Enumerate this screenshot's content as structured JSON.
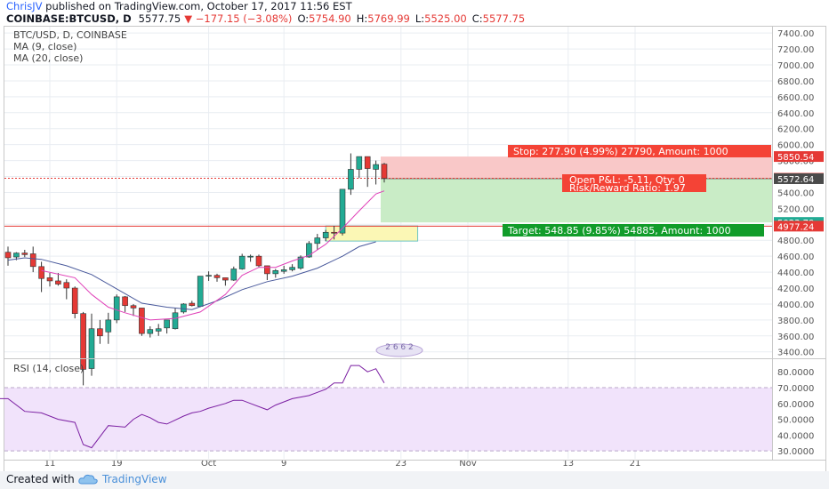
{
  "header": {
    "author": "ChrisJV",
    "published_text": " published on TradingView.com, October 17, 2017 11:56 EST",
    "symbol_line": "COINBASE:BTCUSD, D",
    "last": "5577.75",
    "change": "▼ −177.15 (−3.08%)",
    "open_label": "O:",
    "open": "5754.90",
    "high_label": "H:",
    "high": "5769.99",
    "low_label": "L:",
    "low": "5525.00",
    "close_label": "C:",
    "close": "5577.75"
  },
  "legend": {
    "title": "BTC/USD, D, COINBASE",
    "ma9": "MA (9, close)",
    "ma20": "MA (20, close)",
    "rsi": "RSI (14, close)"
  },
  "footer": {
    "created_with": "Created with",
    "brand": "TradingView"
  },
  "colors": {
    "up": "#22ab94",
    "down": "#e53935",
    "ma9": "#e040b8",
    "ma20": "#4a5a9c",
    "rsi": "#7b1fa2",
    "rsi_band": "#f1e3fb",
    "stop_zone": "#f9c8c8",
    "target_zone": "#c9ecc6",
    "stop_box": "#f44336",
    "target_box": "#119c2a",
    "grid": "#e9edf2"
  },
  "chart_data": [
    {
      "type": "candlestick",
      "title": "BTC/USD, D, COINBASE",
      "ylim": [
        3330,
        7480
      ],
      "price_ticks": [
        "3400.00",
        "3600.00",
        "3800.00",
        "4000.00",
        "4200.00",
        "4400.00",
        "4600.00",
        "4800.00",
        "5000.00",
        "5200.00",
        "5400.00",
        "5600.00",
        "5800.00",
        "6000.00",
        "6200.00",
        "6400.00",
        "6600.00",
        "6800.00",
        "7000.00",
        "7200.00",
        "7400.00"
      ],
      "x_ticks": [
        {
          "label": "11",
          "day": 11
        },
        {
          "label": "19",
          "day": 19
        },
        {
          "label": "Oct",
          "day": 30
        },
        {
          "label": "9",
          "day": 39
        },
        {
          "label": "23",
          "day": 53
        },
        {
          "label": "Nov",
          "day": 61
        },
        {
          "label": "13",
          "day": 73
        },
        {
          "label": "21",
          "day": 81
        }
      ],
      "x_axis_note": "day = days since Sept 1, 2017",
      "candles": [
        {
          "d": 6,
          "o": 4650,
          "h": 4720,
          "l": 4480,
          "c": 4580
        },
        {
          "d": 7,
          "o": 4590,
          "h": 4650,
          "l": 4550,
          "c": 4640
        },
        {
          "d": 8,
          "o": 4640,
          "h": 4680,
          "l": 4590,
          "c": 4620
        },
        {
          "d": 9,
          "o": 4630,
          "h": 4720,
          "l": 4400,
          "c": 4470
        },
        {
          "d": 10,
          "o": 4470,
          "h": 4530,
          "l": 4150,
          "c": 4320
        },
        {
          "d": 11,
          "o": 4330,
          "h": 4390,
          "l": 4220,
          "c": 4290
        },
        {
          "d": 12,
          "o": 4290,
          "h": 4390,
          "l": 4230,
          "c": 4250
        },
        {
          "d": 13,
          "o": 4270,
          "h": 4310,
          "l": 4060,
          "c": 4200
        },
        {
          "d": 14,
          "o": 4200,
          "h": 4220,
          "l": 3820,
          "c": 3880
        },
        {
          "d": 15,
          "o": 3880,
          "h": 3900,
          "l": 2980,
          "c": 3180
        },
        {
          "d": 16,
          "o": 3190,
          "h": 3880,
          "l": 3100,
          "c": 3690
        },
        {
          "d": 17,
          "o": 3690,
          "h": 3800,
          "l": 3500,
          "c": 3600
        },
        {
          "d": 18,
          "o": 3650,
          "h": 3890,
          "l": 3500,
          "c": 3800
        },
        {
          "d": 19,
          "o": 3800,
          "h": 4120,
          "l": 3760,
          "c": 4090
        },
        {
          "d": 20,
          "o": 4090,
          "h": 4100,
          "l": 3900,
          "c": 3980
        },
        {
          "d": 21,
          "o": 3980,
          "h": 4000,
          "l": 3850,
          "c": 3950
        },
        {
          "d": 22,
          "o": 3950,
          "h": 3950,
          "l": 3600,
          "c": 3630
        },
        {
          "d": 23,
          "o": 3630,
          "h": 3720,
          "l": 3580,
          "c": 3680
        },
        {
          "d": 24,
          "o": 3660,
          "h": 3750,
          "l": 3600,
          "c": 3690
        },
        {
          "d": 25,
          "o": 3700,
          "h": 3800,
          "l": 3630,
          "c": 3800
        },
        {
          "d": 26,
          "o": 3690,
          "h": 3950,
          "l": 3680,
          "c": 3890
        },
        {
          "d": 27,
          "o": 3900,
          "h": 4010,
          "l": 3880,
          "c": 4000
        },
        {
          "d": 28,
          "o": 4010,
          "h": 4040,
          "l": 3970,
          "c": 3980
        },
        {
          "d": 29,
          "o": 3970,
          "h": 4350,
          "l": 3960,
          "c": 4350
        },
        {
          "d": 30,
          "o": 4350,
          "h": 4410,
          "l": 4290,
          "c": 4360
        },
        {
          "d": 31,
          "o": 4360,
          "h": 4380,
          "l": 4280,
          "c": 4330
        },
        {
          "d": 32,
          "o": 4330,
          "h": 4330,
          "l": 4230,
          "c": 4300
        },
        {
          "d": 33,
          "o": 4300,
          "h": 4470,
          "l": 4290,
          "c": 4440
        },
        {
          "d": 34,
          "o": 4440,
          "h": 4630,
          "l": 4430,
          "c": 4600
        },
        {
          "d": 35,
          "o": 4600,
          "h": 4620,
          "l": 4530,
          "c": 4600
        },
        {
          "d": 36,
          "o": 4600,
          "h": 4620,
          "l": 4460,
          "c": 4480
        },
        {
          "d": 37,
          "o": 4480,
          "h": 4480,
          "l": 4300,
          "c": 4380
        },
        {
          "d": 38,
          "o": 4380,
          "h": 4440,
          "l": 4330,
          "c": 4420
        },
        {
          "d": 39,
          "o": 4410,
          "h": 4480,
          "l": 4380,
          "c": 4430
        },
        {
          "d": 40,
          "o": 4430,
          "h": 4500,
          "l": 4410,
          "c": 4460
        },
        {
          "d": 41,
          "o": 4450,
          "h": 4610,
          "l": 4430,
          "c": 4590
        },
        {
          "d": 42,
          "o": 4590,
          "h": 4790,
          "l": 4580,
          "c": 4760
        },
        {
          "d": 43,
          "o": 4760,
          "h": 4880,
          "l": 4680,
          "c": 4830
        },
        {
          "d": 44,
          "o": 4830,
          "h": 4930,
          "l": 4790,
          "c": 4900
        },
        {
          "d": 45,
          "o": 4900,
          "h": 4980,
          "l": 4810,
          "c": 4890
        },
        {
          "d": 46,
          "o": 4890,
          "h": 5440,
          "l": 4860,
          "c": 5440
        },
        {
          "d": 47,
          "o": 5440,
          "h": 5890,
          "l": 5370,
          "c": 5690
        },
        {
          "d": 48,
          "o": 5690,
          "h": 5850,
          "l": 5580,
          "c": 5850
        },
        {
          "d": 49,
          "o": 5850,
          "h": 5850,
          "l": 5470,
          "c": 5700
        },
        {
          "d": 50,
          "o": 5690,
          "h": 5800,
          "l": 5500,
          "c": 5750
        },
        {
          "d": 51,
          "o": 5754.9,
          "h": 5769.99,
          "l": 5525,
          "c": 5577.75
        }
      ],
      "ma9": [
        [
          10,
          4420
        ],
        [
          14,
          4330
        ],
        [
          16,
          4120
        ],
        [
          18,
          3960
        ],
        [
          20,
          3890
        ],
        [
          23,
          3800
        ],
        [
          26,
          3820
        ],
        [
          29,
          3900
        ],
        [
          32,
          4120
        ],
        [
          34,
          4360
        ],
        [
          36,
          4460
        ],
        [
          38,
          4460
        ],
        [
          40,
          4540
        ],
        [
          42,
          4610
        ],
        [
          44,
          4750
        ],
        [
          46,
          4950
        ],
        [
          48,
          5170
        ],
        [
          50,
          5380
        ],
        [
          51,
          5420
        ]
      ],
      "ma20": [
        [
          6,
          4550
        ],
        [
          8,
          4580
        ],
        [
          10,
          4560
        ],
        [
          13,
          4480
        ],
        [
          16,
          4370
        ],
        [
          19,
          4190
        ],
        [
          22,
          4010
        ],
        [
          25,
          3960
        ],
        [
          28,
          3930
        ],
        [
          31,
          4040
        ],
        [
          34,
          4180
        ],
        [
          37,
          4280
        ],
        [
          40,
          4350
        ],
        [
          43,
          4450
        ],
        [
          46,
          4600
        ],
        [
          48,
          4720
        ],
        [
          50,
          4780
        ]
      ],
      "price_labels": [
        {
          "value": 5850.54,
          "text": "5850.54",
          "color": "#e53935"
        },
        {
          "value": 5577.75,
          "text": "5577.75",
          "color": "#e53935"
        },
        {
          "value": 5572.64,
          "text": "5572.64",
          "color": "#4a4a4a"
        },
        {
          "value": 5023.79,
          "text": "5023.79",
          "color": "#22ab94"
        },
        {
          "value": 4977.24,
          "text": "4977.24",
          "color": "#e53935"
        }
      ],
      "position": {
        "entry": 5572.64,
        "stop": 5850.54,
        "target": 5023.79,
        "start_day": 51,
        "end_day": 69,
        "stop_label": "Stop: 277.90 (4.99%) 27790, Amount: 1000",
        "target_label": "Target: 548.85 (9.85%) 54885, Amount: 1000",
        "pnl_label": "Open P&L: -5.11, Qty: 0",
        "rr_label": "Risk/Reward Ratio: 1.97"
      },
      "horizontal_line": 4977.24,
      "highlight_box": {
        "from_day": 44,
        "to_day": 55,
        "top": 4980,
        "bottom": 4790
      },
      "watermark_text": "2 6 6 2"
    },
    {
      "type": "line",
      "title": "RSI (14, close)",
      "ylim": [
        25,
        88
      ],
      "ticks": [
        "30.0000",
        "40.0000",
        "50.0000",
        "60.0000",
        "70.0000",
        "80.0000"
      ],
      "band": [
        30,
        70
      ],
      "x": [
        4,
        6,
        8,
        10,
        12,
        14,
        15,
        16,
        18,
        20,
        21,
        22,
        23,
        24,
        25,
        27,
        28,
        29,
        30,
        32,
        33,
        34,
        35,
        37,
        38,
        40,
        42,
        43,
        44,
        45,
        46,
        47,
        48,
        49,
        50,
        51
      ],
      "values": [
        63,
        63,
        55,
        54,
        50,
        48,
        34,
        32,
        46,
        45,
        50,
        53,
        51,
        48,
        47,
        52,
        54,
        55,
        57,
        60,
        62,
        62,
        60,
        56,
        59,
        63,
        65,
        67,
        69,
        73,
        73,
        84,
        84,
        80,
        82,
        73
      ]
    }
  ]
}
